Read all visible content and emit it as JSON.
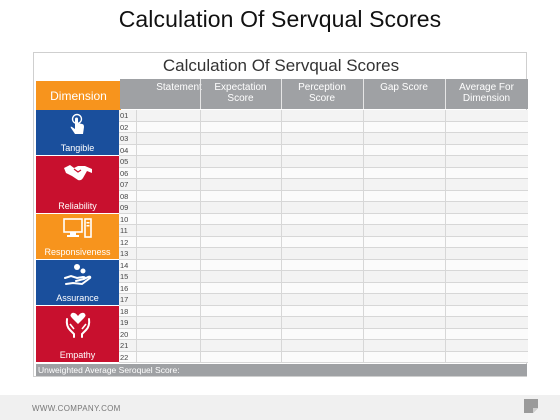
{
  "page": {
    "title": "Calculation Of Servqual Scores"
  },
  "table": {
    "title": "Calculation Of Servqual Scores",
    "dimension_header": "Dimension",
    "columns": [
      "Statement",
      "Expectation\nScore",
      "Perception\nScore",
      "Gap Score",
      "Average For\nDimension"
    ],
    "dimensions": [
      {
        "label": "Tangible",
        "icon": "touch-hand-icon",
        "color": "#1a4f9c",
        "rows": [
          "01",
          "02",
          "03",
          "04"
        ]
      },
      {
        "label": "Reliability",
        "icon": "handshake-icon",
        "color": "#c8102e",
        "rows": [
          "05",
          "06",
          "07",
          "08",
          "09"
        ]
      },
      {
        "label": "Responsiveness",
        "icon": "computer-icon",
        "color": "#f7941d",
        "rows": [
          "10",
          "11",
          "12",
          "13"
        ]
      },
      {
        "label": "Assurance",
        "icon": "hand-coins-icon",
        "color": "#1a4f9c",
        "rows": [
          "14",
          "15",
          "16",
          "17"
        ]
      },
      {
        "label": "Empathy",
        "icon": "hands-heart-icon",
        "color": "#c8102e",
        "rows": [
          "18",
          "19",
          "20",
          "21",
          "22"
        ]
      }
    ],
    "footer": "Unweighted Average Seroquel Score:"
  },
  "footer": {
    "company": "WWW.COMPANY.COM"
  },
  "colors": {
    "orange": "#f7941d",
    "blue": "#1a4f9c",
    "red": "#c8102e",
    "grey": "#9fa1a4"
  }
}
